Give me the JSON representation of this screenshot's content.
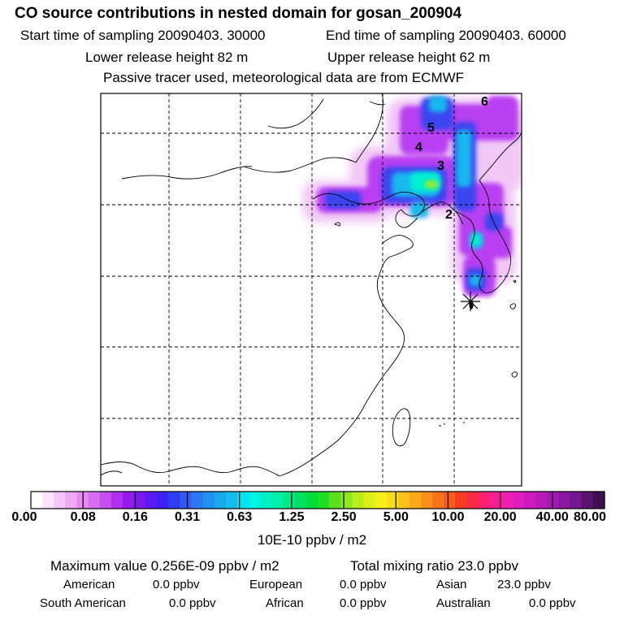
{
  "header": {
    "title": "CO  source contributions in nested domain for gosan_200904",
    "start_time": "Start time of sampling 20090403. 30000",
    "end_time": "End time of sampling 20090403. 60000",
    "lower_height": "Lower release height   82 m",
    "upper_height": "Upper release height   62 m",
    "tracer_note": "Passive tracer used, meteorological data are from ECMWF"
  },
  "map": {
    "trajectory_labels": [
      "6",
      "5",
      "4",
      "3",
      "2"
    ],
    "receptor_symbol": "gosan-receptor-star"
  },
  "colorbar": {
    "tick_labels": [
      "0.00",
      "0.08",
      "0.16",
      "0.31",
      "0.63",
      "1.25",
      "2.50",
      "5.00",
      "10.00",
      "20.00",
      "40.00",
      "80.00"
    ],
    "colors": [
      "#ffffff",
      "#fbe3fb",
      "#f5c6f8",
      "#eeaaf5",
      "#e38cf2",
      "#d66ef0",
      "#c64ff0",
      "#b22ff0",
      "#9419ef",
      "#7a19f0",
      "#5a19f0",
      "#3a22f2",
      "#2f3df5",
      "#2e5cf5",
      "#2c78f5",
      "#1f92f0",
      "#17a9ee",
      "#14bfee",
      "#00e5f0",
      "#00f5e5",
      "#00f0c8",
      "#00f0a8",
      "#00e888",
      "#00e060",
      "#00dc38",
      "#1ee020",
      "#5ae01c",
      "#8ee61c",
      "#b8ee1c",
      "#dcf01c",
      "#f5f01c",
      "#f8de18",
      "#f8c41a",
      "#f8aa1a",
      "#f8901a",
      "#f8741a",
      "#f85a1a",
      "#f83c22",
      "#f82a44",
      "#f82270",
      "#f81f92",
      "#f01fb0",
      "#e01ebe",
      "#cc1ac0",
      "#b81ab8",
      "#a018ae",
      "#8a16a0",
      "#701890",
      "#58146e",
      "#40104e"
    ],
    "unit_label": "10E-10 ppbv / m2"
  },
  "summary": {
    "max_value": "Maximum value  0.256E-09 ppbv / m2",
    "total_mixing": "Total mixing ratio       23.0 ppbv",
    "regions": [
      {
        "name": "American",
        "value": "0.0 ppbv"
      },
      {
        "name": "European",
        "value": "0.0 ppbv"
      },
      {
        "name": "Asian",
        "value": "23.0 ppbv"
      },
      {
        "name": "South American",
        "value": "0.0 ppbv"
      },
      {
        "name": "African",
        "value": "0.0 ppbv"
      },
      {
        "name": "Australian",
        "value": "0.0 ppbv"
      }
    ]
  }
}
